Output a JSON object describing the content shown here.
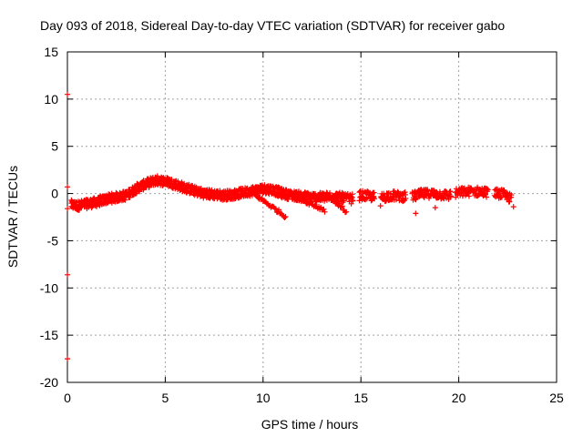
{
  "chart_data": {
    "type": "scatter",
    "title": "Day 093 of 2018, Sidereal Day-to-day VTEC variation (SDTVAR) for receiver gabo",
    "xlabel": "GPS time / hours",
    "ylabel": "SDTVAR / TECUs",
    "xlim": [
      0,
      25
    ],
    "ylim": [
      -20,
      15
    ],
    "xticks": [
      0,
      5,
      10,
      15,
      20,
      25
    ],
    "yticks": [
      -20,
      -15,
      -10,
      -5,
      0,
      5,
      10,
      15
    ],
    "grid": true,
    "marker": "+",
    "series": [
      {
        "name": "SDTVAR",
        "color": "#ff0000",
        "trend": [
          [
            0.2,
            -1.2
          ],
          [
            0.5,
            -1.3
          ],
          [
            1.0,
            -1.1
          ],
          [
            1.5,
            -0.9
          ],
          [
            2.0,
            -0.6
          ],
          [
            2.5,
            -0.4
          ],
          [
            3.0,
            -0.2
          ],
          [
            3.5,
            0.5
          ],
          [
            4.0,
            1.0
          ],
          [
            4.5,
            1.4
          ],
          [
            5.0,
            1.3
          ],
          [
            5.5,
            1.0
          ],
          [
            6.0,
            0.6
          ],
          [
            6.5,
            0.3
          ],
          [
            7.0,
            0.0
          ],
          [
            7.5,
            -0.1
          ],
          [
            8.0,
            -0.2
          ],
          [
            8.5,
            -0.1
          ],
          [
            9.0,
            0.1
          ],
          [
            9.5,
            0.3
          ],
          [
            10.0,
            0.5
          ],
          [
            10.5,
            0.4
          ],
          [
            11.0,
            0.0
          ],
          [
            11.5,
            -0.2
          ],
          [
            12.0,
            -0.3
          ],
          [
            12.5,
            -0.4
          ],
          [
            13.0,
            -0.4
          ],
          [
            13.5,
            -0.3
          ],
          [
            14.0,
            -0.4
          ],
          [
            14.5,
            -0.6
          ],
          [
            15.0,
            -0.2
          ],
          [
            15.5,
            -0.3
          ],
          [
            16.0,
            -0.5
          ],
          [
            16.5,
            -0.2
          ],
          [
            17.0,
            -0.3
          ],
          [
            17.5,
            -0.4
          ],
          [
            18.0,
            -0.1
          ],
          [
            18.5,
            0.0
          ],
          [
            19.0,
            -0.1
          ],
          [
            19.5,
            -0.2
          ],
          [
            20.0,
            0.1
          ],
          [
            20.5,
            0.2
          ],
          [
            21.0,
            0.2
          ],
          [
            21.5,
            0.1
          ],
          [
            22.0,
            0.0
          ],
          [
            22.3,
            -0.1
          ],
          [
            22.7,
            -0.6
          ]
        ],
        "spread": 0.5,
        "branches": [
          {
            "x0": 9.5,
            "x1": 11.2,
            "y0": 0.0,
            "y1": -2.5
          },
          {
            "x0": 11.5,
            "x1": 13.2,
            "y0": -0.2,
            "y1": -1.8
          },
          {
            "x0": 13.5,
            "x1": 14.3,
            "y0": -0.5,
            "y1": -2.0
          }
        ],
        "outliers": [
          [
            0.0,
            10.5
          ],
          [
            0.0,
            0.7
          ],
          [
            0.0,
            -1.6
          ],
          [
            0.0,
            -8.6
          ],
          [
            0.0,
            -17.5
          ],
          [
            17.8,
            -2.1
          ],
          [
            16.0,
            -1.3
          ],
          [
            22.8,
            -1.4
          ],
          [
            18.8,
            -1.5
          ]
        ]
      }
    ]
  }
}
